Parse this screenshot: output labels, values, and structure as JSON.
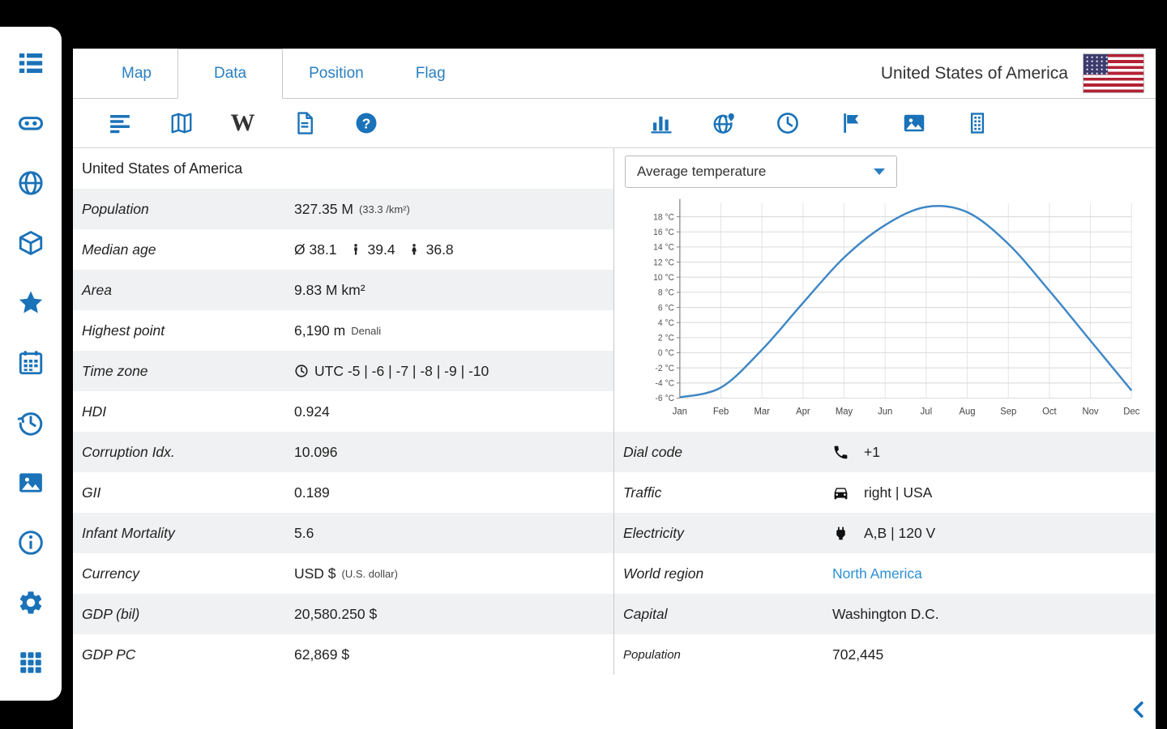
{
  "app": {
    "country_title": "United States of America"
  },
  "tabs": {
    "map": "Map",
    "data": "Data",
    "position": "Position",
    "flag": "Flag"
  },
  "dropdown": {
    "selected": "Average temperature"
  },
  "table": {
    "header": "United States of America",
    "rows": [
      {
        "label": "Population",
        "value": "327.35 M",
        "note": "(33.3 /km²)"
      },
      {
        "label": "Median age",
        "avg": "Ø 38.1",
        "male": "39.4",
        "female": "36.8"
      },
      {
        "label": "Area",
        "value": "9.83 M km²"
      },
      {
        "label": "Highest point",
        "value": "6,190 m",
        "note": "Denali"
      },
      {
        "label": "Time zone",
        "value": "UTC -5 | -6 | -7 | -8 | -9 | -10"
      },
      {
        "label": "HDI",
        "value": "0.924"
      },
      {
        "label": "Corruption Idx.",
        "value": "10.096"
      },
      {
        "label": "GII",
        "value": "0.189"
      },
      {
        "label": "Infant Mortality",
        "value": "5.6"
      },
      {
        "label": "Currency",
        "value": "USD $",
        "note": "(U.S. dollar)"
      },
      {
        "label": "GDP (bil)",
        "value": "20,580.250 $"
      },
      {
        "label": "GDP PC",
        "value": "62,869 $"
      }
    ]
  },
  "details": {
    "rows": [
      {
        "label": "Dial code",
        "value": "+1",
        "icon": "phone-icon"
      },
      {
        "label": "Traffic",
        "value": "right | USA",
        "icon": "car-icon"
      },
      {
        "label": "Electricity",
        "value": "A,B | 120 V",
        "icon": "plug-icon"
      },
      {
        "label": "World region",
        "value": "North America"
      },
      {
        "label": "Capital",
        "value": "Washington D.C."
      },
      {
        "label": "Population",
        "value": "702,445"
      }
    ]
  },
  "icons": {
    "sidebar": [
      "list-icon",
      "mask-icon",
      "globe-icon",
      "cube-icon",
      "star-icon",
      "calendar-icon",
      "history-icon",
      "image-icon",
      "info-icon",
      "gear-icon",
      "apps-grid-icon"
    ],
    "toolbar_left": [
      "lines-icon",
      "map-icon",
      "wikipedia-icon",
      "document-icon",
      "help-icon"
    ],
    "toolbar_right": [
      "bar-chart-icon",
      "globe-pin-icon",
      "clock-icon",
      "flag-icon",
      "image-icon",
      "building-icon"
    ]
  },
  "colors": {
    "accent": "#1a72b8",
    "positive": "#3cb043",
    "link": "#2e8fd4",
    "chart_line": "#3f87c5"
  },
  "chart_data": {
    "type": "line",
    "title": "Average temperature",
    "x": [
      "Jan",
      "Feb",
      "Mar",
      "Apr",
      "May",
      "Jun",
      "Jul",
      "Aug",
      "Sep",
      "Oct",
      "Nov",
      "Dec"
    ],
    "series": [
      {
        "name": "Average temperature",
        "values": [
          -5.9,
          -4.6,
          0.4,
          6.6,
          12.6,
          16.9,
          19.3,
          18.6,
          14.4,
          8.2,
          1.6,
          -5.0
        ]
      }
    ],
    "y_unit": "°C",
    "yticks": [
      18,
      16,
      14,
      12,
      10,
      8,
      6,
      4,
      2,
      0,
      -2,
      -4,
      -6
    ],
    "ylim": [
      -7.4,
      19.8
    ],
    "grid": true,
    "legend": "none"
  }
}
